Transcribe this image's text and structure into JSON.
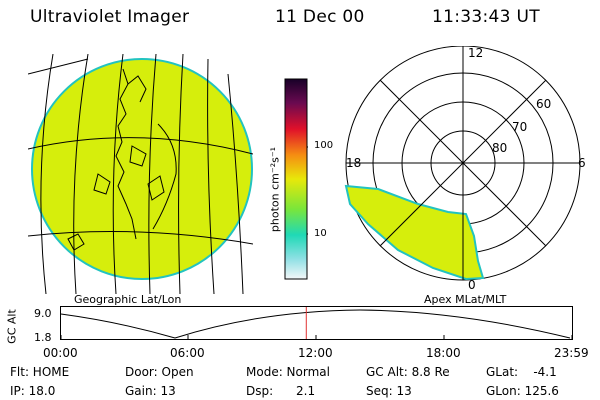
{
  "header": {
    "instrument": "Ultraviolet Imager",
    "date": "11 Dec 00",
    "time": "11:33:43 UT"
  },
  "colorbar": {
    "unit_label": "photon cm⁻²s⁻¹",
    "ticks": [
      "100",
      "10"
    ]
  },
  "panels": {
    "left_caption": "Geographic Lat/Lon",
    "right_caption": "Apex MLat/MLT",
    "polar_labels": {
      "mlt_12": "12",
      "mlt_18": "18",
      "mlt_6": "6",
      "mlt_0": "0",
      "lat_60": "60",
      "lat_70": "70",
      "lat_80": "80"
    }
  },
  "timeline": {
    "ylabel": "GC Alt",
    "ymax": "9.0",
    "ymin": "1.8",
    "ticks": [
      "00:00",
      "06:00",
      "12:00",
      "18:00",
      "23:59"
    ],
    "current_time_fraction": 0.48
  },
  "footer": {
    "flt": "Flt: HOME",
    "ip": "IP: 18.0",
    "door": "Door: Open",
    "gain": "Gain: 13",
    "mode": "Mode: Normal",
    "dsp": "Dsp:      2.1",
    "gcalt": "GC Alt: 8.8 Re",
    "seq": "Seq: 13",
    "glat": "GLat:    -4.1",
    "glon": "GLon: 125.6"
  },
  "colors": {
    "aurora": "#d6ee0c",
    "disk_edge": "#22c3c0",
    "marker": "#e03030"
  }
}
